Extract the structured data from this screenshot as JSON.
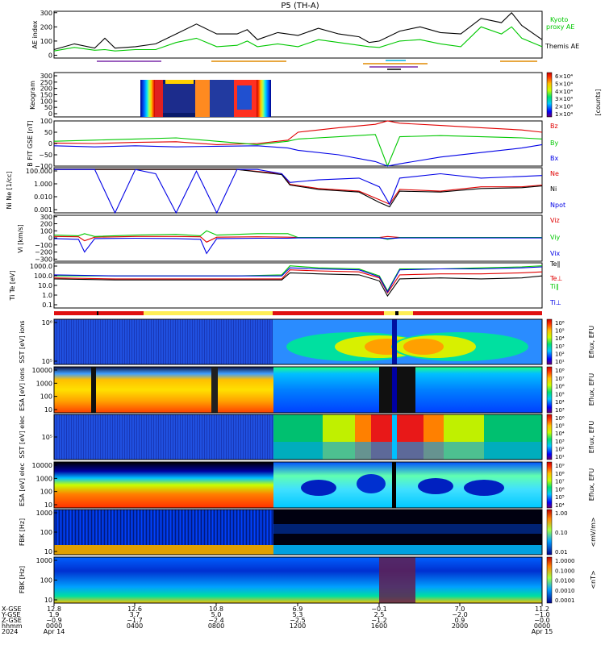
{
  "title": "P5 (TH-A)",
  "colors": {
    "green": "#00c800",
    "red": "#e00000",
    "blue": "#0000e6",
    "black": "#000000",
    "purple": "#7a2aa8",
    "orange": "#e08a00",
    "cyan": "#00b4d8",
    "yellow": "#ffee55"
  },
  "chart_data": [
    {
      "type": "line",
      "panel": "ae",
      "ylabel": "AE index",
      "ytick_labels": [
        "0",
        "100",
        "200",
        "300"
      ],
      "yticks": [
        0,
        100,
        200,
        300
      ],
      "ylim": [
        -20,
        310
      ],
      "legend": [
        "Kyoto",
        "proxy AE",
        "Themis AE"
      ],
      "series": [
        {
          "name": "Kyoto proxy AE",
          "color": "green",
          "x": [
            0,
            1,
            2,
            2.5,
            3,
            4,
            5,
            6,
            7,
            8,
            9,
            9.5,
            10,
            11,
            12,
            13,
            14,
            15,
            15.5,
            16,
            17,
            18,
            19,
            20,
            21,
            22,
            22.5,
            23,
            24
          ],
          "values": [
            30,
            55,
            35,
            40,
            30,
            40,
            40,
            90,
            120,
            60,
            70,
            100,
            60,
            80,
            60,
            110,
            90,
            70,
            60,
            55,
            100,
            110,
            80,
            60,
            200,
            150,
            200,
            120,
            60
          ]
        },
        {
          "name": "Themis AE",
          "color": "black",
          "x": [
            0,
            1,
            2,
            2.5,
            3,
            4,
            5,
            6,
            7,
            8,
            9,
            9.5,
            10,
            11,
            12,
            13,
            14,
            15,
            15.5,
            16,
            17,
            18,
            19,
            20,
            21,
            22,
            22.5,
            23,
            24
          ],
          "values": [
            40,
            80,
            50,
            120,
            50,
            60,
            80,
            150,
            220,
            150,
            150,
            180,
            110,
            160,
            140,
            190,
            150,
            130,
            90,
            100,
            170,
            200,
            160,
            150,
            260,
            230,
            300,
            210,
            110
          ]
        }
      ]
    },
    {
      "type": "heatmap",
      "panel": "keogram",
      "ylabel": "Keogram",
      "ytick_labels": [
        "0",
        "50",
        "100",
        "150",
        "200",
        "250",
        "300"
      ],
      "colorbar_label": "[counts]",
      "colorbar_ticks": [
        "6×10⁴",
        "5×10⁴",
        "4×10⁴",
        "3×10⁴",
        "2×10⁴",
        "1×10⁴"
      ]
    },
    {
      "type": "line",
      "panel": "bfield",
      "ylabel": "B FIT GSE [nT]",
      "ytick_labels": [
        "−100",
        "−50",
        "0",
        "50",
        "100"
      ],
      "yticks": [
        -100,
        -50,
        0,
        50,
        100
      ],
      "ylim": [
        -100,
        100
      ],
      "legend": [
        "Bz",
        "By",
        "Bx"
      ],
      "series": [
        {
          "name": "Bz",
          "color": "red",
          "x": [
            0,
            2,
            4,
            6,
            8,
            10,
            11.5,
            12,
            14,
            15.8,
            16.4,
            17,
            19,
            21,
            23,
            24
          ],
          "values": [
            2,
            0,
            5,
            8,
            -5,
            0,
            15,
            50,
            70,
            85,
            100,
            90,
            80,
            70,
            60,
            50
          ]
        },
        {
          "name": "By",
          "color": "green",
          "x": [
            0,
            2,
            4,
            6,
            8,
            10,
            11.5,
            12,
            14,
            15.8,
            16.4,
            17,
            19,
            21,
            23,
            24
          ],
          "values": [
            10,
            15,
            20,
            25,
            10,
            -5,
            10,
            20,
            30,
            40,
            -100,
            30,
            35,
            30,
            25,
            20
          ]
        },
        {
          "name": "Bx",
          "color": "blue",
          "x": [
            0,
            2,
            4,
            6,
            8,
            10,
            11.5,
            12,
            14,
            15.8,
            16.4,
            17,
            19,
            21,
            23,
            24
          ],
          "values": [
            -10,
            -15,
            -10,
            -15,
            -12,
            -10,
            -20,
            -30,
            -50,
            -80,
            -100,
            -90,
            -60,
            -40,
            -20,
            -5
          ]
        }
      ]
    },
    {
      "type": "line",
      "panel": "density",
      "ylabel": "Ni Ne [1/cc]",
      "ytick_labels": [
        "100.000",
        "1.000",
        "0.010",
        "0.001"
      ],
      "legend": [
        "Ne",
        "Ni",
        "Npot"
      ],
      "series": [
        {
          "name": "Ne",
          "color": "red",
          "x": [
            0,
            3,
            6,
            9,
            11.2,
            11.6,
            13,
            15,
            16,
            16.5,
            17,
            19,
            21,
            23,
            24
          ],
          "log10_values": [
            2,
            2,
            2,
            2,
            1.5,
            0.3,
            -0.2,
            -0.5,
            -1.5,
            -2,
            -0.3,
            -0.5,
            0,
            0,
            0.2
          ]
        },
        {
          "name": "Ni",
          "color": "black",
          "x": [
            0,
            3,
            6,
            9,
            11.2,
            11.6,
            13,
            15,
            16,
            16.5,
            17,
            19,
            21,
            23,
            24
          ],
          "log10_values": [
            2,
            2,
            2,
            2,
            1.4,
            0.2,
            -0.3,
            -0.6,
            -1.8,
            -2.3,
            -0.5,
            -0.6,
            -0.2,
            -0.1,
            0.1
          ]
        },
        {
          "name": "Npot",
          "color": "blue",
          "x": [
            0,
            2,
            3,
            4,
            5,
            6,
            7,
            8,
            9,
            10,
            11.2,
            11.6,
            13,
            15,
            16,
            16.5,
            17,
            19,
            21,
            23,
            24
          ],
          "log10_values": [
            2,
            2,
            -3,
            2,
            1.5,
            -3,
            1.8,
            -3,
            2,
            2,
            1.5,
            0.5,
            0.8,
            1,
            0,
            -2,
            1,
            1.5,
            1,
            1.2,
            1.3
          ]
        }
      ]
    },
    {
      "type": "line",
      "panel": "velocity",
      "ylabel": "Vi [km/s]",
      "ytick_labels": [
        "300",
        "200",
        "100",
        "0",
        "−100",
        "−200",
        "−300"
      ],
      "yticks": [
        300,
        200,
        100,
        0,
        -100,
        -200,
        -300
      ],
      "ylim": [
        -330,
        320
      ],
      "legend": [
        "Viz",
        "Viy",
        "Vix"
      ],
      "series": [
        {
          "name": "Viz",
          "color": "red",
          "x": [
            0,
            1.2,
            1.5,
            2,
            4,
            6,
            7.2,
            7.5,
            8,
            10,
            11.5,
            12,
            16,
            16.4,
            17,
            20,
            24
          ],
          "values": [
            20,
            15,
            -40,
            10,
            20,
            20,
            15,
            -60,
            10,
            15,
            10,
            5,
            5,
            20,
            5,
            5,
            5
          ]
        },
        {
          "name": "Viy",
          "color": "green",
          "x": [
            0,
            1.2,
            1.5,
            2,
            4,
            6,
            7.2,
            7.5,
            8,
            10,
            11.5,
            12,
            16,
            16.4,
            17,
            20,
            24
          ],
          "values": [
            40,
            30,
            60,
            20,
            40,
            50,
            30,
            100,
            40,
            60,
            60,
            5,
            5,
            -20,
            5,
            5,
            5
          ]
        },
        {
          "name": "Vix",
          "color": "blue",
          "x": [
            0,
            1.2,
            1.5,
            2,
            4,
            6,
            7.2,
            7.5,
            8,
            10,
            11.5,
            12,
            16,
            16.4,
            17,
            20,
            24
          ],
          "values": [
            -10,
            -20,
            -200,
            -10,
            -5,
            -10,
            -20,
            -220,
            -10,
            -5,
            -5,
            0,
            0,
            -10,
            0,
            0,
            0
          ]
        }
      ]
    },
    {
      "type": "line",
      "panel": "temperature",
      "ylabel": "Ti Te [eV]",
      "ytick_labels": [
        "1000.0",
        "100.0",
        "10.0",
        "1.0",
        "0.1"
      ],
      "legend": [
        "Te∥",
        "Te⊥",
        "Ti∥",
        "Ti⊥"
      ],
      "series": [
        {
          "name": "Te∥",
          "color": "black",
          "x": [
            0,
            3,
            6,
            9,
            11.2,
            11.6,
            13,
            15,
            16,
            16.4,
            17,
            19,
            21,
            23,
            24
          ],
          "log10_values": [
            1.7,
            1.6,
            1.6,
            1.6,
            1.6,
            2.3,
            2.2,
            2.1,
            1.5,
            0,
            1.7,
            1.8,
            1.7,
            1.8,
            2
          ]
        },
        {
          "name": "Te⊥",
          "color": "red",
          "x": [
            0,
            3,
            6,
            9,
            11.2,
            11.6,
            13,
            15,
            16,
            16.4,
            17,
            19,
            21,
            23,
            24
          ],
          "log10_values": [
            1.8,
            1.7,
            1.7,
            1.7,
            1.7,
            2.6,
            2.5,
            2.4,
            1.8,
            0.3,
            2.1,
            2.2,
            2.2,
            2.3,
            2.4
          ]
        },
        {
          "name": "Ti∥",
          "color": "green",
          "x": [
            0,
            3,
            6,
            9,
            11.2,
            11.6,
            13,
            15,
            16,
            16.4,
            17,
            19,
            21,
            23,
            24
          ],
          "log10_values": [
            2,
            2,
            2,
            2,
            2.1,
            3,
            2.8,
            2.7,
            2,
            0.5,
            2.7,
            2.7,
            2.8,
            2.9,
            3
          ]
        },
        {
          "name": "Ti⊥",
          "color": "blue",
          "x": [
            0,
            3,
            6,
            9,
            11.2,
            11.6,
            13,
            15,
            16,
            16.4,
            17,
            19,
            21,
            23,
            24
          ],
          "log10_values": [
            2.1,
            2,
            2,
            2,
            2,
            2.8,
            2.7,
            2.6,
            1.9,
            0.4,
            2.6,
            2.7,
            2.7,
            2.8,
            2.9
          ]
        }
      ]
    },
    {
      "type": "heatmap",
      "panel": "sst_i",
      "ylabel": "SST [eV] ions",
      "ytick_labels": [
        "10⁶",
        "10⁵"
      ],
      "colorbar_label": "Eflux, EFU",
      "colorbar_ticks": [
        "10⁶",
        "10⁵",
        "10⁴",
        "10³",
        "10²",
        "10¹"
      ]
    },
    {
      "type": "heatmap",
      "panel": "esa_i",
      "ylabel": "ESA [eV] ions",
      "ytick_labels": [
        "10000",
        "1000",
        "100",
        "10"
      ],
      "colorbar_label": "Eflux, EFU",
      "colorbar_ticks": [
        "10⁸",
        "10⁷",
        "10⁶",
        "10⁵",
        "10⁴",
        "10³"
      ]
    },
    {
      "type": "heatmap",
      "panel": "sst_e",
      "ylabel": "SST [eV] elec",
      "ytick_labels": [
        "10⁵"
      ],
      "colorbar_label": "Eflux, EFU",
      "colorbar_ticks": [
        "10⁶",
        "10⁵",
        "10⁴",
        "10³",
        "10²",
        "10¹"
      ]
    },
    {
      "type": "heatmap",
      "panel": "esa_e",
      "ylabel": "ESA [eV] elec",
      "ytick_labels": [
        "10000",
        "1000",
        "100",
        "10"
      ],
      "colorbar_label": "Eflux, EFU",
      "colorbar_ticks": [
        "10⁹",
        "10⁸",
        "10⁷",
        "10⁶",
        "10⁵",
        "10⁴"
      ]
    },
    {
      "type": "heatmap",
      "panel": "fbk_e",
      "ylabel": "FBK [Hz]",
      "ytick_labels": [
        "1000",
        "100",
        "10"
      ],
      "colorbar_label": "<mV/m>",
      "colorbar_ticks": [
        "1.00",
        "0.10",
        "0.01"
      ]
    },
    {
      "type": "heatmap",
      "panel": "fbk_b",
      "ylabel": "FBK [Hz]",
      "ytick_labels": [
        "1000",
        "100",
        "10"
      ],
      "colorbar_label": "<nT>",
      "colorbar_ticks": [
        "1.0000",
        "0.1000",
        "0.0100",
        "0.0010",
        "0.0001"
      ]
    },
    {
      "type": "table",
      "panel": "orbit",
      "row_labels": [
        "X-GSE",
        "Y-GSE",
        "Z-GSE",
        "hhmm",
        "2024"
      ],
      "columns": [
        [
          "12.8",
          "1.9",
          "−0.9",
          "0000",
          "Apr 14"
        ],
        [
          "12.6",
          "3.7",
          "−1.7",
          "0400",
          ""
        ],
        [
          "10.8",
          "5.0",
          "−2.4",
          "0800",
          ""
        ],
        [
          "6.9",
          "5.3",
          "−2.5",
          "1200",
          ""
        ],
        [
          "−0.1",
          "2.5",
          "−1.2",
          "1600",
          ""
        ],
        [
          "7.0",
          "−2.0",
          "0.9",
          "2000",
          ""
        ],
        [
          "11.2",
          "−1.0",
          "−0.0",
          "0000",
          "Apr 15"
        ]
      ]
    }
  ]
}
